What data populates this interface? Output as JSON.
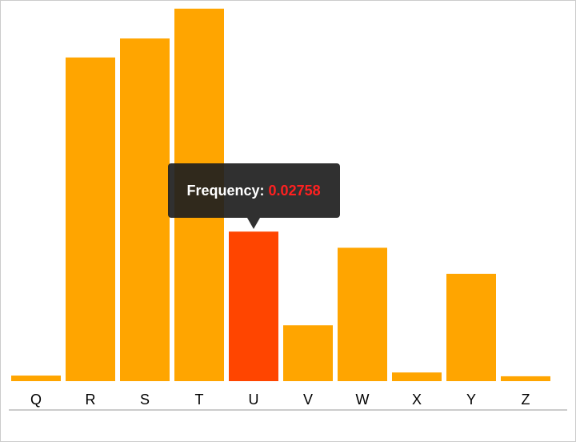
{
  "chart_data": {
    "type": "bar",
    "categories": [
      "Q",
      "R",
      "S",
      "T",
      "U",
      "V",
      "W",
      "X",
      "Y",
      "Z"
    ],
    "values": [
      0.00103,
      0.0597,
      0.0632,
      0.0687,
      0.02758,
      0.0103,
      0.0246,
      0.0016,
      0.0198,
      0.0009
    ],
    "color": "#ffa500",
    "highlight_color": "#ff4500",
    "highlight": 4,
    "tooltip_label": "Frequency:",
    "tooltip_value_color": "#ff2020",
    "ylim": [
      0,
      0.07
    ]
  }
}
